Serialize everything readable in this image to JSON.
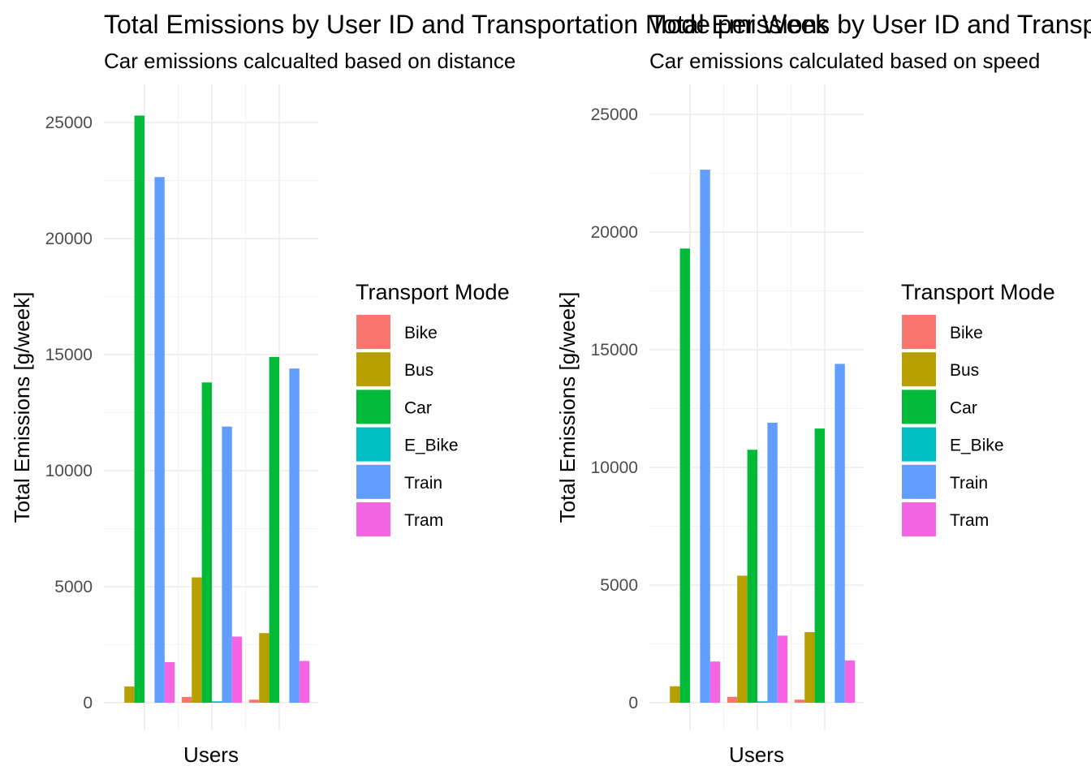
{
  "chart_data": [
    {
      "type": "bar",
      "title": "Total Emissions by User ID and Transportation Mode per Week",
      "subtitle": "Car emissions calcualted based on distance",
      "xlabel": "Users",
      "ylabel": "Total Emissions [g/week]",
      "ylim": [
        0,
        26000
      ],
      "yticks": [
        0,
        5000,
        10000,
        15000,
        20000,
        25000
      ],
      "grid": true,
      "legend_title": "Transport Mode",
      "legend_position": "right",
      "users": 3,
      "modes": [
        "Bike",
        "Bus",
        "Car",
        "E_Bike",
        "Train",
        "Tram"
      ],
      "colors": [
        "#F8766D",
        "#B79F00",
        "#00BA38",
        "#00BFC4",
        "#619CFF",
        "#F564E3"
      ],
      "values": [
        [
          null,
          700,
          25300,
          null,
          22650,
          1750
        ],
        [
          250,
          5400,
          13800,
          60,
          11900,
          2850
        ],
        [
          130,
          3000,
          14900,
          null,
          14400,
          1800
        ]
      ]
    },
    {
      "type": "bar",
      "title": "Total Emissions by User ID and Transportation Mode per Week",
      "subtitle": "Car emissions calculated based on speed",
      "xlabel": "Users",
      "ylabel": "Total Emissions [g/week]",
      "ylim": [
        0,
        26000
      ],
      "yticks": [
        0,
        5000,
        10000,
        15000,
        20000,
        25000
      ],
      "grid": true,
      "legend_title": "Transport Mode",
      "legend_position": "right",
      "users": 3,
      "modes": [
        "Bike",
        "Bus",
        "Car",
        "E_Bike",
        "Train",
        "Tram"
      ],
      "colors": [
        "#F8766D",
        "#B79F00",
        "#00BA38",
        "#00BFC4",
        "#619CFF",
        "#F564E3"
      ],
      "values": [
        [
          null,
          700,
          19300,
          null,
          22650,
          1750
        ],
        [
          250,
          5400,
          10750,
          60,
          11900,
          2850
        ],
        [
          130,
          3000,
          11650,
          null,
          14400,
          1800
        ]
      ]
    }
  ]
}
